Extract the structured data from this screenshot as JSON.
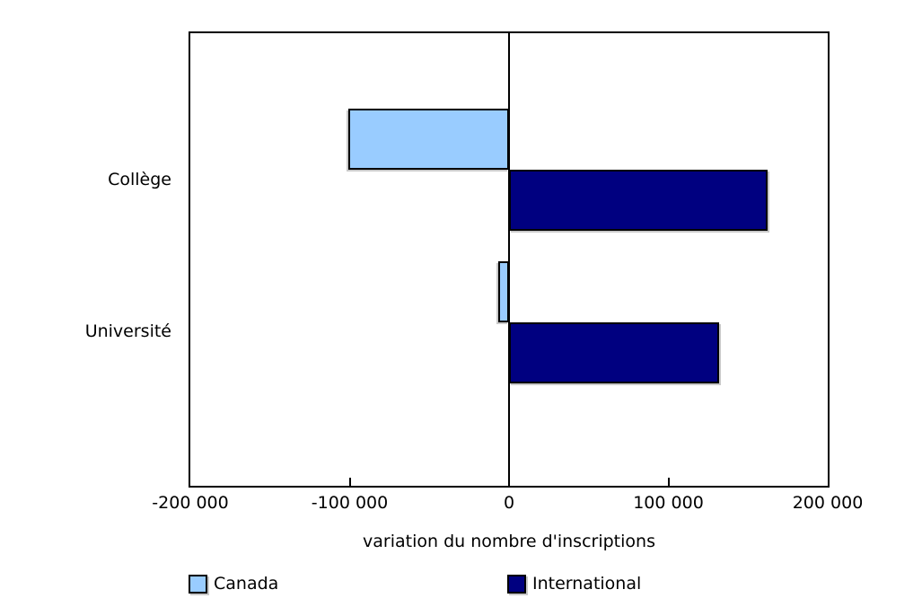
{
  "chart_data": {
    "type": "bar",
    "orientation": "horizontal",
    "title": "",
    "categories": [
      "Collège",
      "Université"
    ],
    "series": [
      {
        "name": "Canada",
        "color": "#99CCFF",
        "values": [
          -101000,
          -7000
        ]
      },
      {
        "name": "International",
        "color": "#000080",
        "values": [
          162000,
          132000
        ]
      }
    ],
    "xlabel": "variation du nombre d'inscriptions",
    "ylabel": "",
    "xlim": [
      -200000,
      200000
    ],
    "x_ticks": [
      -200000,
      -100000,
      0,
      100000,
      200000
    ],
    "x_tick_labels": [
      "-200 000",
      "-100 000",
      "0",
      "100 000",
      "200 000"
    ],
    "grid": false,
    "zero_line": true,
    "legend_position": "bottom",
    "colors": {
      "background": "#ffffff",
      "axis": "#000000",
      "text": "#000000",
      "bar_border": "#000000",
      "bar_shadow": "#c9c9c9"
    }
  }
}
